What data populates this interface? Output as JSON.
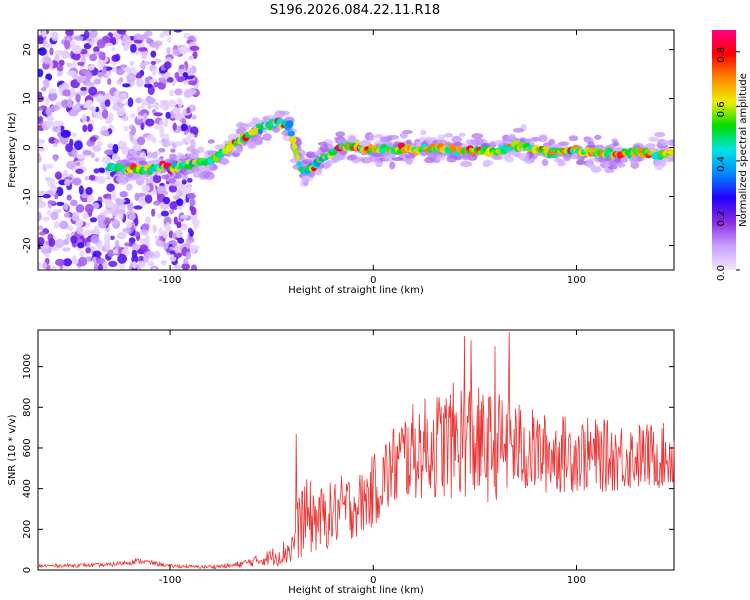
{
  "page_title": "S196.2026.084.22.11.R18",
  "chart_data": [
    {
      "type": "heatmap",
      "xlabel": "Height of straight line (km)",
      "ylabel": "Frequency (Hz)",
      "xlim": [
        -165,
        148
      ],
      "ylim": [
        -25,
        24
      ],
      "xticks": [
        -100,
        0,
        100
      ],
      "xtick_labels": [
        "-100",
        "0",
        "100"
      ],
      "yticks": [
        -20,
        -10,
        0,
        10,
        20
      ],
      "ytick_labels": [
        "-20",
        "-10",
        "0",
        "10",
        "20"
      ],
      "colorbar": {
        "label": "Normalized spectral amplitude",
        "range": [
          0.0,
          0.88
        ],
        "ticks": [
          0.0,
          0.2,
          0.4,
          0.6,
          0.8
        ],
        "tick_labels": [
          "0.0",
          "0.2",
          "0.4",
          "0.6",
          "0.8"
        ],
        "colors": [
          "#f2e6ff",
          "#c9a0ff",
          "#8a2be2",
          "#2200ff",
          "#0088ff",
          "#00e5e5",
          "#00dd00",
          "#eeee00",
          "#ff8800",
          "#ff0000",
          "#ff0088"
        ]
      },
      "ridge": {
        "x": [
          -130,
          -115,
          -100,
          -90,
          -82,
          -75,
          -68,
          -60,
          -52,
          -46,
          -41,
          -38,
          -35,
          -30,
          -25,
          -20,
          -15,
          -10,
          -5,
          0,
          10,
          20,
          30,
          40,
          50,
          60,
          70,
          80,
          90,
          100,
          110,
          120,
          130,
          140,
          148
        ],
        "y": [
          -4,
          -4.5,
          -4,
          -3.5,
          -3,
          -1,
          1,
          3,
          4.5,
          5,
          4,
          -1,
          -5,
          -4,
          -2,
          -1,
          0,
          0.3,
          0,
          -0.5,
          -0.3,
          -0.5,
          0,
          -0.5,
          -0.5,
          -1,
          0.5,
          -0.5,
          -1,
          -0.5,
          -1,
          -1.5,
          -1,
          -1.5,
          -1
        ]
      },
      "ridge_peak_amplitude": 0.85,
      "noise_region_x": [
        -165,
        -87
      ],
      "noise_amplitude": 0.35
    },
    {
      "type": "line",
      "xlabel": "Height of straight line (km)",
      "ylabel": "SNR (10 * v/v)",
      "xlim": [
        -165,
        148
      ],
      "ylim": [
        0,
        1180
      ],
      "xticks": [
        -100,
        0,
        100
      ],
      "xtick_labels": [
        "-100",
        "0",
        "100"
      ],
      "yticks": [
        0,
        200,
        400,
        600,
        800,
        1000
      ],
      "ytick_labels": [
        "0",
        "200",
        "400",
        "600",
        "800",
        "1000"
      ],
      "color": "#ee3333",
      "envelope_x": [
        -165,
        -130,
        -115,
        -100,
        -85,
        -70,
        -55,
        -45,
        -40,
        -35,
        -25,
        -15,
        -5,
        5,
        15,
        25,
        35,
        45,
        55,
        65,
        75,
        85,
        100,
        115,
        130,
        148
      ],
      "envelope_mean": [
        20,
        25,
        45,
        20,
        15,
        20,
        50,
        80,
        110,
        260,
        250,
        300,
        330,
        450,
        560,
        600,
        620,
        650,
        600,
        620,
        590,
        570,
        570,
        560,
        560,
        560
      ],
      "envelope_spread": [
        8,
        10,
        14,
        8,
        8,
        12,
        30,
        60,
        90,
        200,
        160,
        170,
        160,
        200,
        230,
        250,
        280,
        300,
        280,
        260,
        220,
        200,
        190,
        180,
        170,
        160
      ],
      "peak_x": [
        -38,
        45,
        48,
        60,
        67
      ],
      "peak_y": [
        670,
        1150,
        1130,
        1100,
        1170
      ],
      "n_points": 900
    }
  ]
}
